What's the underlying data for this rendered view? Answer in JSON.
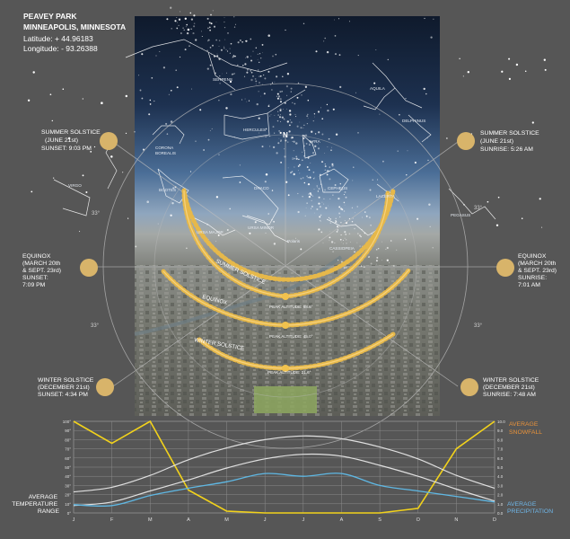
{
  "header": {
    "title1": "PEAVEY PARK",
    "title2": "MINNEAPOLIS, MINNESOTA",
    "latitude": "Latitude: + 44.96183",
    "longitude": "Longitude: - 93.26388"
  },
  "events": {
    "summer_left": [
      "SUMMER SOLSTICE",
      "(JUNE 21st)",
      "SUNSET: 9:03 PM"
    ],
    "summer_right": [
      "SUMMER SOLSTICE",
      "(JUNE 21st)",
      "SUNRISE: 5:26 AM"
    ],
    "equinox_left": [
      "EQUINOX",
      "(MARCH 20th",
      "& SEPT. 23rd)",
      "SUNSET:",
      "7:09 PM"
    ],
    "equinox_right": [
      "EQUINOX",
      "(MARCH 20th",
      "& SEPT. 23rd)",
      "SUNRISE:",
      "7:01 AM"
    ],
    "winter_left": [
      "WINTER SOLSTICE",
      "(DECEMBER 21st)",
      "SUNSET: 4:34 PM"
    ],
    "winter_right": [
      "WINTER SOLSTICE",
      "(DECEMBER 21st)",
      "SUNRISE: 7:48 AM"
    ]
  },
  "compass": {
    "north": "N"
  },
  "degrees": {
    "upper_left": "33°",
    "upper_right": "33°",
    "lower_left": "33°",
    "lower_right": "33°"
  },
  "constellations": [
    "SERPENS",
    "AQUILA",
    "DELPHINUS",
    "HERCULES",
    "LYRA",
    "CORONA BOREALIS",
    "BOOTES",
    "DRACO",
    "CEPHEUS",
    "LACERTA",
    "PEGASUS",
    "VIRGO",
    "URSA MAJOR",
    "URSA MINOR",
    "Polaris",
    "CASSIOPEIA"
  ],
  "arc_labels": {
    "summer": "SUMMER SOLSTICE",
    "equinox": "EQUINOX",
    "winter": "WINTER SOLSTICE",
    "peak_summer": "PEAK ALTITUDE: 68.6°",
    "peak_equinox": "PEAK ALTITUDE: 45.0°",
    "peak_winter": "PEAK ALTITUDE: 21.6°"
  },
  "legend": {
    "snowfall": [
      "AVERAGE",
      "SNOWFALL"
    ],
    "temperature": [
      "AVERAGE",
      "TEMPERATURE",
      "RANGE"
    ],
    "precipitation": [
      "AVERAGE",
      "PRECIPITATION"
    ]
  },
  "colors": {
    "background": "#565656",
    "sun": "#d8b46a",
    "snowfall": "#f2d21b",
    "temperature": "#e0e0e0",
    "precipitation": "#5fb8e4",
    "legend_snow": "#e8923a",
    "legend_precip": "#6fb6e8"
  },
  "chart_data": {
    "type": "line",
    "x": [
      "J",
      "F",
      "M",
      "A",
      "M",
      "J",
      "J",
      "A",
      "S",
      "O",
      "N",
      "D"
    ],
    "y_left_ticks": [
      "0°",
      "10°",
      "20°",
      "30°",
      "40°",
      "50°",
      "60°",
      "70°",
      "80°",
      "90°",
      "100°"
    ],
    "y_right_ticks": [
      "0.0",
      "1.0",
      "2.0",
      "3.0",
      "4.0",
      "5.0",
      "6.0",
      "7.0",
      "8.0",
      "9.0",
      "10.0"
    ],
    "ylim_left": [
      0,
      100
    ],
    "ylim_right": [
      0,
      10
    ],
    "series": [
      {
        "name": "AVERAGE SNOWFALL",
        "axis": "right",
        "values": [
          10.0,
          7.6,
          10.0,
          2.5,
          0.2,
          0.0,
          0.0,
          0.0,
          0.0,
          0.5,
          7.0,
          10.0
        ]
      },
      {
        "name": "TEMPERATURE HIGH",
        "axis": "left",
        "values": [
          23,
          28,
          41,
          58,
          71,
          80,
          84,
          81,
          72,
          59,
          41,
          27
        ]
      },
      {
        "name": "TEMPERATURE LOW",
        "axis": "left",
        "values": [
          8,
          12,
          24,
          36,
          49,
          59,
          64,
          62,
          52,
          40,
          26,
          13
        ]
      },
      {
        "name": "AVERAGE PRECIPITATION",
        "axis": "right",
        "values": [
          0.9,
          0.8,
          1.9,
          2.7,
          3.4,
          4.3,
          4.0,
          4.3,
          3.0,
          2.4,
          1.8,
          1.2
        ]
      }
    ],
    "grid": true
  }
}
